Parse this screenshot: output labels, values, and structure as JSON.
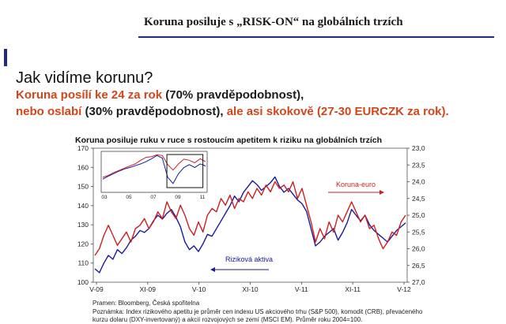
{
  "header": {
    "title": "Koruna posiluje s „RISK-ON“ na globálních trzích"
  },
  "content": {
    "subtitle": "Jak vidíme korunu?",
    "line1_a": "Koruna posílí ke 24 za rok",
    "line1_b": " (70% pravděpodobnost),",
    "line2_a": "nebo oslabí",
    "line2_b": " (30% pravděpodobnost),",
    "line2_c": " ale asi skokově (27-30 EURCZK za rok)."
  },
  "footer": {
    "source": "Pramen: Bloomberg, Česká spořitelna",
    "note": "Poznámka: Index rizikového apetitu je průměr cen indexu US akciového trhu (S&P 500), komodit (CRB), převaćeného kurzu dolaru (DXY-invertovaný) a akcií rozvojových se zemí (MSCI EM). Průměr roku 2004=100."
  },
  "colors": {
    "red": "#d2461a",
    "navy": "#1f2a80",
    "risk": "#1a1a9e",
    "koruna": "#cc1f1f"
  },
  "chart_data": {
    "type": "line",
    "title": "Koruna posiluje ruku v ruce s rostoucím apetitem k riziku na globálních trzích",
    "x_ticks": [
      "V-09",
      "XI-09",
      "V-10",
      "XI-10",
      "V-11",
      "XI-11",
      "V-12"
    ],
    "left_axis": {
      "ticks": [
        100,
        110,
        120,
        130,
        140,
        150,
        160,
        170
      ],
      "ylim": [
        100,
        170
      ]
    },
    "right_axis": {
      "ticks": [
        "23,0",
        "23,5",
        "24,0",
        "24,5",
        "25,0",
        "25,5",
        "26,0",
        "26,5",
        "27,0"
      ],
      "ylim": [
        27.0,
        23.0
      ],
      "inverted": true
    },
    "grid": false,
    "series": [
      {
        "name": "Riziková aktiva",
        "axis": "left",
        "color": "#1a1a9e",
        "values": [
          107,
          105,
          110,
          114,
          112,
          117,
          115,
          118,
          122,
          124,
          127,
          126,
          128,
          132,
          135,
          133,
          136,
          138,
          134,
          129,
          121,
          117,
          119,
          116,
          120,
          125,
          124,
          128,
          132,
          136,
          140,
          145,
          142,
          147,
          150,
          153,
          151,
          148,
          150,
          152,
          155,
          150,
          147,
          149,
          146,
          143,
          141,
          137,
          128,
          119,
          121,
          124,
          126,
          128,
          122,
          126,
          131,
          138,
          135,
          132,
          135,
          130,
          127,
          125,
          123,
          121,
          124,
          127,
          129,
          131
        ]
      },
      {
        "name": "Koruna-euro",
        "axis": "right",
        "color": "#cc1f1f",
        "values": [
          26.2,
          26.0,
          25.6,
          25.3,
          25.6,
          25.9,
          25.7,
          25.5,
          25.8,
          25.4,
          25.3,
          25.1,
          25.4,
          25.2,
          24.9,
          25.1,
          24.6,
          24.9,
          25.1,
          24.7,
          25.0,
          25.4,
          25.6,
          25.2,
          25.5,
          25.0,
          24.8,
          24.9,
          24.5,
          24.7,
          24.4,
          24.8,
          24.5,
          24.6,
          24.3,
          24.5,
          24.2,
          24.4,
          24.1,
          24.3,
          24.0,
          24.2,
          24.1,
          24.3,
          24.0,
          24.5,
          24.2,
          24.7,
          25.2,
          25.8,
          25.4,
          25.7,
          25.2,
          25.5,
          25.0,
          25.2,
          24.9,
          24.6,
          24.9,
          25.2,
          25.0,
          25.4,
          25.3,
          25.7,
          26.0,
          25.8,
          25.5,
          25.6,
          25.2,
          25.0
        ]
      }
    ],
    "inset": {
      "type": "line",
      "x_ticks": [
        "03",
        "05",
        "07",
        "09",
        "11"
      ],
      "series": [
        {
          "name": "",
          "values": [
            0.3,
            0.38,
            0.45,
            0.52,
            0.58,
            0.62,
            0.67,
            0.72,
            0.78,
            0.86,
            0.95,
            0.88,
            0.35,
            0.18,
            0.45,
            0.62,
            0.7,
            0.62,
            0.72,
            0.66
          ]
        },
        {
          "name": "",
          "values": [
            0.35,
            0.4,
            0.48,
            0.54,
            0.6,
            0.66,
            0.72,
            0.82,
            0.9,
            0.92,
            0.97,
            0.95,
            0.7,
            0.55,
            0.72,
            0.85,
            0.82,
            0.75,
            0.86,
            0.78
          ]
        }
      ]
    }
  }
}
